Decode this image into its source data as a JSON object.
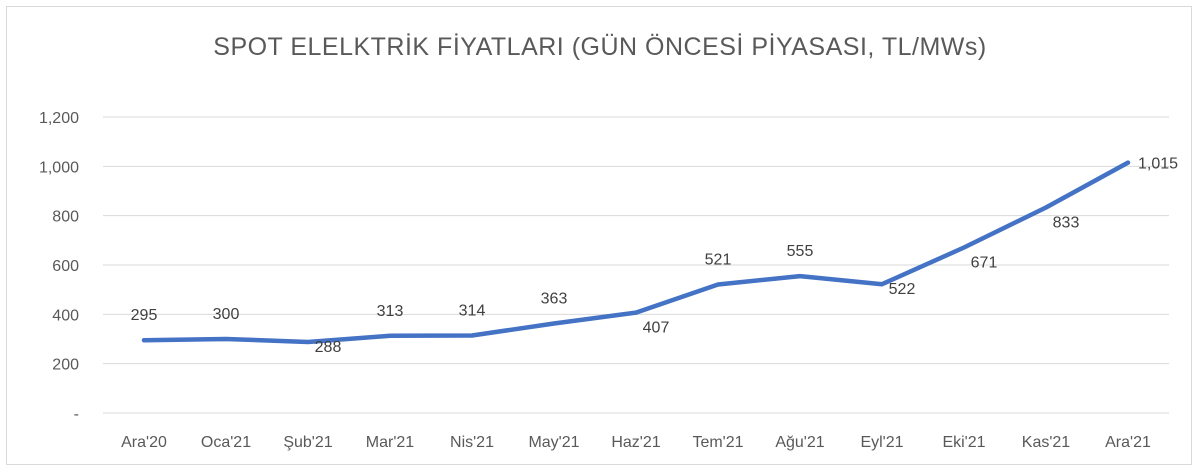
{
  "chart_data": {
    "type": "line",
    "title": "SPOT ELELKTRİK FİYATLARI (GÜN ÖNCESİ PİYASASI, TL/MWs)",
    "xlabel": "",
    "ylabel": "",
    "categories": [
      "Ara'20",
      "Oca'21",
      "Şub'21",
      "Mar'21",
      "Nis'21",
      "May'21",
      "Haz'21",
      "Tem'21",
      "Ağu'21",
      "Eyl'21",
      "Eki'21",
      "Kas'21",
      "Ara'21"
    ],
    "series": [
      {
        "values": [
          295,
          300,
          288,
          313,
          314,
          363,
          407,
          521,
          555,
          522,
          671,
          833,
          1015
        ],
        "labels": [
          "295",
          "300",
          "288",
          "313",
          "314",
          "363",
          "407",
          "521",
          "555",
          "522",
          "671",
          "833",
          "1,015"
        ],
        "color": "#4472c4"
      }
    ],
    "ylim": [
      0,
      1200
    ],
    "yticks": [
      0,
      200,
      400,
      600,
      800,
      1000,
      1200
    ],
    "ytick_labels": [
      "-",
      "200",
      "400",
      "600",
      "800",
      "1,000",
      "1,200"
    ],
    "grid": true,
    "legend": "none"
  }
}
